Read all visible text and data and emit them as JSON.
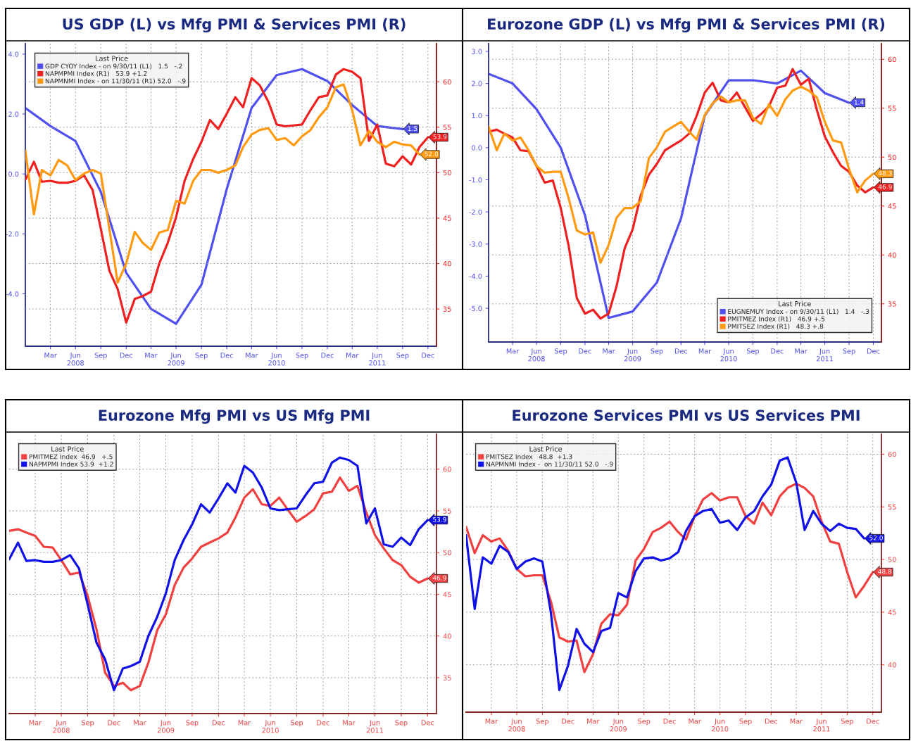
{
  "chart_data": [
    {
      "type": "line",
      "title": "US GDP (L) vs Mfg PMI & Services PMI (R)",
      "legend_title": "Last Price",
      "legend": "top left",
      "grid": true,
      "marker": "none",
      "line_style": "solid",
      "x": [
        "2007-12-31",
        "2008-01-31",
        "2008-02-29",
        "2008-03-31",
        "2008-04-30",
        "2008-05-31",
        "2008-06-30",
        "2008-07-31",
        "2008-08-31",
        "2008-09-30",
        "2008-10-31",
        "2008-11-30",
        "2008-12-31",
        "2009-01-31",
        "2009-02-28",
        "2009-03-31",
        "2009-04-30",
        "2009-05-31",
        "2009-06-30",
        "2009-07-31",
        "2009-08-31",
        "2009-09-30",
        "2009-10-31",
        "2009-11-30",
        "2009-12-31",
        "2010-01-31",
        "2010-02-28",
        "2010-03-31",
        "2010-04-30",
        "2010-05-31",
        "2010-06-30",
        "2010-07-31",
        "2010-08-31",
        "2010-09-30",
        "2010-10-31",
        "2010-11-30",
        "2010-12-31",
        "2011-01-31",
        "2011-02-28",
        "2011-03-31",
        "2011-04-30",
        "2011-05-31",
        "2011-06-30",
        "2011-07-31",
        "2011-08-31",
        "2011-09-30",
        "2011-10-31",
        "2011-11-30",
        "2011-12-31"
      ],
      "xlim": [
        "2007-12-31",
        "2012-01-31"
      ],
      "xticks": [
        {
          "value": "2008-03-31",
          "label": "Mar"
        },
        {
          "value": "2008-06-30",
          "label": "Jun\n2008"
        },
        {
          "value": "2008-09-30",
          "label": "Sep"
        },
        {
          "value": "2008-12-31",
          "label": "Dec"
        },
        {
          "value": "2009-03-31",
          "label": "Mar"
        },
        {
          "value": "2009-06-30",
          "label": "Jun\n2009"
        },
        {
          "value": "2009-09-30",
          "label": "Sep"
        },
        {
          "value": "2009-12-31",
          "label": "Dec"
        },
        {
          "value": "2010-03-31",
          "label": "Mar"
        },
        {
          "value": "2010-06-30",
          "label": "Jun\n2010"
        },
        {
          "value": "2010-09-30",
          "label": "Sep"
        },
        {
          "value": "2010-12-31",
          "label": "Dec"
        },
        {
          "value": "2011-03-31",
          "label": "Mar"
        },
        {
          "value": "2011-06-30",
          "label": "Jun\n2011"
        },
        {
          "value": "2011-09-30",
          "label": "Sep"
        },
        {
          "value": "2011-12-31",
          "label": "Dec"
        }
      ],
      "ylim": [
        -5.75,
        4.35
      ],
      "yticks": [
        {
          "value": -4,
          "label": "-4.0"
        },
        {
          "value": -2,
          "label": "-2.0"
        },
        {
          "value": 0,
          "label": "0.0"
        },
        {
          "value": 2,
          "label": "2.0"
        },
        {
          "value": 4,
          "label": "4.0"
        }
      ],
      "y2lim": [
        30.9,
        64.2
      ],
      "y2ticks": [
        35,
        40,
        45,
        50,
        55,
        60
      ],
      "series": [
        {
          "name": "GDP CYOY Index - on 9/30/11 (L1)   1.5   -.2",
          "color": "#5050f0",
          "axis": "y",
          "x": [
            "2007-12-31",
            "2008-03-31",
            "2008-06-30",
            "2008-09-30",
            "2008-12-31",
            "2009-03-31",
            "2009-06-30",
            "2009-09-30",
            "2009-12-31",
            "2010-03-31",
            "2010-06-30",
            "2010-09-30",
            "2010-12-31",
            "2011-03-31",
            "2011-06-30",
            "2011-09-30"
          ],
          "values": [
            2.2,
            1.6,
            1.1,
            -0.6,
            -3.3,
            -4.5,
            -5.0,
            -3.7,
            -0.5,
            2.2,
            3.3,
            3.5,
            3.1,
            2.3,
            1.6,
            1.5
          ],
          "value_labels": [
            null,
            null,
            null,
            null,
            null,
            null,
            null,
            null,
            null,
            null,
            null,
            null,
            null,
            null,
            null,
            "1.5"
          ]
        },
        {
          "name": "NAPMPMI Index (R1)   53.9 +1.2",
          "color": "#f02020",
          "axis": "y2",
          "values": [
            49.2,
            51.2,
            49.0,
            49.1,
            48.9,
            48.9,
            49.1,
            49.7,
            48.1,
            43.8,
            39.2,
            37.2,
            33.5,
            36.1,
            36.4,
            36.9,
            40.0,
            42.3,
            45.1,
            49.1,
            51.5,
            53.4,
            55.8,
            54.8,
            56.5,
            58.3,
            57.2,
            60.4,
            59.6,
            57.8,
            55.3,
            55.1,
            55.2,
            55.3,
            56.9,
            58.3,
            58.5,
            60.8,
            61.4,
            61.1,
            60.4,
            53.5,
            55.3,
            51.0,
            50.7,
            51.8,
            50.9,
            52.8,
            53.9
          ],
          "value_labels": [
            null,
            null,
            null,
            null,
            null,
            null,
            null,
            null,
            null,
            null,
            null,
            null,
            null,
            null,
            null,
            null,
            null,
            null,
            null,
            null,
            null,
            null,
            null,
            null,
            null,
            null,
            null,
            null,
            null,
            null,
            null,
            null,
            null,
            null,
            null,
            null,
            null,
            null,
            null,
            null,
            null,
            null,
            null,
            null,
            null,
            null,
            null,
            null,
            "53.9"
          ]
        },
        {
          "name": "NAPMNMI Index - on 11/30/11 (R1) 52.0   -.9",
          "color": "#ff9a10",
          "axis": "y2",
          "values": [
            52.4,
            45.4,
            50.3,
            49.7,
            51.4,
            50.8,
            49.2,
            49.9,
            50.3,
            49.9,
            43.8,
            37.9,
            40.0,
            43.5,
            42.3,
            41.5,
            43.4,
            43.7,
            46.9,
            46.6,
            49.1,
            50.3,
            50.3,
            50.0,
            50.3,
            50.8,
            52.8,
            54.2,
            54.7,
            54.9,
            53.6,
            53.8,
            53.0,
            54.0,
            54.7,
            56.1,
            57.2,
            59.4,
            59.7,
            56.9,
            53.0,
            54.6,
            53.4,
            52.8,
            53.4,
            53.1,
            53.0,
            52.0,
            null
          ],
          "value_labels": [
            null,
            null,
            null,
            null,
            null,
            null,
            null,
            null,
            null,
            null,
            null,
            null,
            null,
            null,
            null,
            null,
            null,
            null,
            null,
            null,
            null,
            null,
            null,
            null,
            null,
            null,
            null,
            null,
            null,
            null,
            null,
            null,
            null,
            null,
            null,
            null,
            null,
            null,
            null,
            null,
            null,
            null,
            null,
            null,
            null,
            null,
            null,
            "52.0",
            null
          ]
        }
      ]
    },
    {
      "type": "line",
      "title": "Eurozone GDP (L) vs Mfg PMI & Services PMI (R)",
      "legend_title": "Last Price",
      "legend": "bottom right",
      "grid": true,
      "marker": "none",
      "line_style": "solid",
      "x": [
        "2007-12-31",
        "2008-01-31",
        "2008-02-29",
        "2008-03-31",
        "2008-04-30",
        "2008-05-31",
        "2008-06-30",
        "2008-07-31",
        "2008-08-31",
        "2008-09-30",
        "2008-10-31",
        "2008-11-30",
        "2008-12-31",
        "2009-01-31",
        "2009-02-28",
        "2009-03-31",
        "2009-04-30",
        "2009-05-31",
        "2009-06-30",
        "2009-07-31",
        "2009-08-31",
        "2009-09-30",
        "2009-10-31",
        "2009-11-30",
        "2009-12-31",
        "2010-01-31",
        "2010-02-28",
        "2010-03-31",
        "2010-04-30",
        "2010-05-31",
        "2010-06-30",
        "2010-07-31",
        "2010-08-31",
        "2010-09-30",
        "2010-10-31",
        "2010-11-30",
        "2010-12-31",
        "2011-01-31",
        "2011-02-28",
        "2011-03-31",
        "2011-04-30",
        "2011-05-31",
        "2011-06-30",
        "2011-07-31",
        "2011-08-31",
        "2011-09-30",
        "2011-10-31",
        "2011-11-30",
        "2011-12-31"
      ],
      "xlim": [
        "2007-12-31",
        "2012-01-31"
      ],
      "xticks": [
        {
          "value": "2008-03-31",
          "label": "Mar"
        },
        {
          "value": "2008-06-30",
          "label": "Jun\n2008"
        },
        {
          "value": "2008-09-30",
          "label": "Sep"
        },
        {
          "value": "2008-12-31",
          "label": "Dec"
        },
        {
          "value": "2009-03-31",
          "label": "Mar"
        },
        {
          "value": "2009-06-30",
          "label": "Jun\n2009"
        },
        {
          "value": "2009-09-30",
          "label": "Sep"
        },
        {
          "value": "2009-12-31",
          "label": "Dec"
        },
        {
          "value": "2010-03-31",
          "label": "Mar"
        },
        {
          "value": "2010-06-30",
          "label": "Jun\n2010"
        },
        {
          "value": "2010-09-30",
          "label": "Sep"
        },
        {
          "value": "2010-12-31",
          "label": "Dec"
        },
        {
          "value": "2011-03-31",
          "label": "Mar"
        },
        {
          "value": "2011-06-30",
          "label": "Jun\n2011"
        },
        {
          "value": "2011-09-30",
          "label": "Sep"
        },
        {
          "value": "2011-12-31",
          "label": "Dec"
        }
      ],
      "ylim": [
        -6.05,
        3.24
      ],
      "yticks": [
        {
          "value": -5,
          "label": "-5.0"
        },
        {
          "value": -4,
          "label": "-4.0"
        },
        {
          "value": -3,
          "label": "-3.0"
        },
        {
          "value": -2,
          "label": "-2.0"
        },
        {
          "value": -1,
          "label": "-1.0"
        },
        {
          "value": 0,
          "label": "0.0"
        },
        {
          "value": 1,
          "label": "1.0"
        },
        {
          "value": 2,
          "label": "2.0"
        },
        {
          "value": 3,
          "label": "3.0"
        }
      ],
      "y2lim": [
        31.1,
        61.6
      ],
      "y2ticks": [
        35,
        40,
        45,
        50,
        55,
        60
      ],
      "series": [
        {
          "name": "EUGNEMUY Index - on 9/30/11 (L1)   1.4   -.3",
          "color": "#5050f0",
          "axis": "y",
          "x": [
            "2007-12-31",
            "2008-03-31",
            "2008-06-30",
            "2008-09-30",
            "2008-12-31",
            "2009-03-31",
            "2009-06-30",
            "2009-09-30",
            "2009-12-31",
            "2010-03-31",
            "2010-06-30",
            "2010-09-30",
            "2010-12-31",
            "2011-03-31",
            "2011-06-30",
            "2011-09-30"
          ],
          "values": [
            2.3,
            2.0,
            1.2,
            0.0,
            -2.1,
            -5.3,
            -5.1,
            -4.2,
            -2.2,
            1.0,
            2.1,
            2.1,
            2.0,
            2.4,
            1.7,
            1.4
          ],
          "value_labels": [
            null,
            null,
            null,
            null,
            null,
            null,
            null,
            null,
            null,
            null,
            null,
            null,
            null,
            null,
            null,
            "1.4"
          ]
        },
        {
          "name": "PMITMEZ Index (R1)   46.9 +.5",
          "color": "#f02020",
          "axis": "y2",
          "values": [
            52.6,
            52.8,
            52.4,
            52.0,
            50.7,
            50.6,
            49.1,
            47.4,
            47.6,
            44.8,
            40.8,
            35.6,
            34.0,
            34.4,
            33.5,
            34.0,
            36.8,
            40.7,
            42.6,
            46.1,
            48.2,
            49.3,
            50.7,
            51.2,
            51.7,
            52.4,
            54.2,
            56.6,
            57.6,
            55.8,
            55.6,
            56.6,
            55.1,
            53.7,
            54.4,
            55.2,
            57.1,
            57.3,
            59.0,
            57.4,
            58.0,
            54.8,
            52.1,
            50.5,
            49.1,
            48.5,
            47.1,
            46.4,
            46.9
          ],
          "value_labels": [
            null,
            null,
            null,
            null,
            null,
            null,
            null,
            null,
            null,
            null,
            null,
            null,
            null,
            null,
            null,
            null,
            null,
            null,
            null,
            null,
            null,
            null,
            null,
            null,
            null,
            null,
            null,
            null,
            null,
            null,
            null,
            null,
            null,
            null,
            null,
            null,
            null,
            null,
            null,
            null,
            null,
            null,
            null,
            null,
            null,
            null,
            null,
            null,
            "46.9"
          ]
        },
        {
          "name": "PMITSEZ Index (R1)   48.3 +.8",
          "color": "#ff9a10",
          "axis": "y2",
          "values": [
            53.1,
            50.7,
            52.4,
            51.7,
            52.0,
            50.7,
            49.1,
            48.4,
            48.5,
            48.5,
            45.7,
            42.5,
            42.1,
            42.3,
            39.2,
            41.0,
            43.8,
            44.8,
            44.8,
            45.5,
            49.9,
            51.0,
            52.6,
            53.1,
            53.6,
            52.6,
            51.8,
            54.3,
            55.5,
            56.2,
            55.6,
            55.8,
            55.8,
            54.0,
            53.4,
            55.4,
            54.2,
            55.9,
            56.8,
            57.2,
            56.8,
            56.1,
            53.6,
            51.7,
            51.5,
            48.8,
            46.4,
            47.6,
            48.3
          ],
          "value_labels": [
            null,
            null,
            null,
            null,
            null,
            null,
            null,
            null,
            null,
            null,
            null,
            null,
            null,
            null,
            null,
            null,
            null,
            null,
            null,
            null,
            null,
            null,
            null,
            null,
            null,
            null,
            null,
            null,
            null,
            null,
            null,
            null,
            null,
            null,
            null,
            null,
            null,
            null,
            null,
            null,
            null,
            null,
            null,
            null,
            null,
            null,
            null,
            null,
            "48.3"
          ]
        }
      ]
    },
    {
      "type": "line",
      "title": "Eurozone Mfg PMI vs US Mfg PMI",
      "legend_title": "Last Price",
      "legend": "top left",
      "grid": true,
      "marker": "none",
      "line_style": "solid",
      "x": [
        "2007-12-31",
        "2008-01-31",
        "2008-02-29",
        "2008-03-31",
        "2008-04-30",
        "2008-05-31",
        "2008-06-30",
        "2008-07-31",
        "2008-08-31",
        "2008-09-30",
        "2008-10-31",
        "2008-11-30",
        "2008-12-31",
        "2009-01-31",
        "2009-02-28",
        "2009-03-31",
        "2009-04-30",
        "2009-05-31",
        "2009-06-30",
        "2009-07-31",
        "2009-08-31",
        "2009-09-30",
        "2009-10-31",
        "2009-11-30",
        "2009-12-31",
        "2010-01-31",
        "2010-02-28",
        "2010-03-31",
        "2010-04-30",
        "2010-05-31",
        "2010-06-30",
        "2010-07-31",
        "2010-08-31",
        "2010-09-30",
        "2010-10-31",
        "2010-11-30",
        "2010-12-31",
        "2011-01-31",
        "2011-02-28",
        "2011-03-31",
        "2011-04-30",
        "2011-05-31",
        "2011-06-30",
        "2011-07-31",
        "2011-08-31",
        "2011-09-30",
        "2011-10-31",
        "2011-11-30",
        "2011-12-31"
      ],
      "xlim": [
        "2007-12-31",
        "2012-01-31"
      ],
      "xticks": [
        {
          "value": "2008-03-31",
          "label": "Mar"
        },
        {
          "value": "2008-06-30",
          "label": "Jun\n2008"
        },
        {
          "value": "2008-09-30",
          "label": "Sep"
        },
        {
          "value": "2008-12-31",
          "label": "Dec"
        },
        {
          "value": "2009-03-31",
          "label": "Mar"
        },
        {
          "value": "2009-06-30",
          "label": "Jun\n2009"
        },
        {
          "value": "2009-09-30",
          "label": "Sep"
        },
        {
          "value": "2009-12-31",
          "label": "Dec"
        },
        {
          "value": "2010-03-31",
          "label": "Mar"
        },
        {
          "value": "2010-06-30",
          "label": "Jun\n2010"
        },
        {
          "value": "2010-09-30",
          "label": "Sep"
        },
        {
          "value": "2010-12-31",
          "label": "Dec"
        },
        {
          "value": "2011-03-31",
          "label": "Mar"
        },
        {
          "value": "2011-06-30",
          "label": "Jun\n2011"
        },
        {
          "value": "2011-09-30",
          "label": "Sep"
        },
        {
          "value": "2011-12-31",
          "label": "Dec"
        }
      ],
      "y2lim": [
        30.7,
        64.2
      ],
      "y2ticks": [
        35,
        40,
        45,
        50,
        55,
        60
      ],
      "series": [
        {
          "name": "PMITMEZ Index  46.9   +.5",
          "color": "#f04040",
          "axis": "y2",
          "values": [
            52.6,
            52.8,
            52.4,
            52.0,
            50.7,
            50.6,
            49.1,
            47.4,
            47.6,
            44.8,
            40.8,
            35.6,
            34.0,
            34.4,
            33.5,
            34.0,
            36.8,
            40.7,
            42.6,
            46.1,
            48.2,
            49.3,
            50.7,
            51.2,
            51.7,
            52.4,
            54.2,
            56.6,
            57.6,
            55.8,
            55.6,
            56.6,
            55.1,
            53.7,
            54.4,
            55.2,
            57.1,
            57.3,
            59.0,
            57.4,
            58.0,
            54.8,
            52.1,
            50.5,
            49.1,
            48.5,
            47.1,
            46.4,
            46.9
          ],
          "value_labels": [
            null,
            null,
            null,
            null,
            null,
            null,
            null,
            null,
            null,
            null,
            null,
            null,
            null,
            null,
            null,
            null,
            null,
            null,
            null,
            null,
            null,
            null,
            null,
            null,
            null,
            null,
            null,
            null,
            null,
            null,
            null,
            null,
            null,
            null,
            null,
            null,
            null,
            null,
            null,
            null,
            null,
            null,
            null,
            null,
            null,
            null,
            null,
            null,
            "46.9"
          ]
        },
        {
          "name": "NAPMPMI Index 53.9  +1.2",
          "color": "#1010e8",
          "axis": "y2",
          "values": [
            49.2,
            51.2,
            49.0,
            49.1,
            48.9,
            48.9,
            49.1,
            49.7,
            48.1,
            43.8,
            39.2,
            37.2,
            33.5,
            36.1,
            36.4,
            36.9,
            40.0,
            42.3,
            45.1,
            49.1,
            51.5,
            53.4,
            55.8,
            54.8,
            56.5,
            58.3,
            57.2,
            60.4,
            59.6,
            57.8,
            55.3,
            55.1,
            55.2,
            55.3,
            56.9,
            58.3,
            58.5,
            60.8,
            61.4,
            61.1,
            60.4,
            53.5,
            55.3,
            51.0,
            50.7,
            51.8,
            50.9,
            52.8,
            53.9
          ],
          "value_labels": [
            null,
            null,
            null,
            null,
            null,
            null,
            null,
            null,
            null,
            null,
            null,
            null,
            null,
            null,
            null,
            null,
            null,
            null,
            null,
            null,
            null,
            null,
            null,
            null,
            null,
            null,
            null,
            null,
            null,
            null,
            null,
            null,
            null,
            null,
            null,
            null,
            null,
            null,
            null,
            null,
            null,
            null,
            null,
            null,
            null,
            null,
            null,
            null,
            "53.9"
          ]
        }
      ]
    },
    {
      "type": "line",
      "title": "Eurozone Services PMI vs US Services PMI",
      "legend_title": "Last Price",
      "legend": "top left",
      "grid": true,
      "marker": "none",
      "line_style": "solid",
      "x": [
        "2007-12-31",
        "2008-01-31",
        "2008-02-29",
        "2008-03-31",
        "2008-04-30",
        "2008-05-31",
        "2008-06-30",
        "2008-07-31",
        "2008-08-31",
        "2008-09-30",
        "2008-10-31",
        "2008-11-30",
        "2008-12-31",
        "2009-01-31",
        "2009-02-28",
        "2009-03-31",
        "2009-04-30",
        "2009-05-31",
        "2009-06-30",
        "2009-07-31",
        "2009-08-31",
        "2009-09-30",
        "2009-10-31",
        "2009-11-30",
        "2009-12-31",
        "2010-01-31",
        "2010-02-28",
        "2010-03-31",
        "2010-04-30",
        "2010-05-31",
        "2010-06-30",
        "2010-07-31",
        "2010-08-31",
        "2010-09-30",
        "2010-10-31",
        "2010-11-30",
        "2010-12-31",
        "2011-01-31",
        "2011-02-28",
        "2011-03-31",
        "2011-04-30",
        "2011-05-31",
        "2011-06-30",
        "2011-07-31",
        "2011-08-31",
        "2011-09-30",
        "2011-10-31",
        "2011-11-30",
        "2011-12-31"
      ],
      "xlim": [
        "2007-12-31",
        "2012-01-31"
      ],
      "xticks": [
        {
          "value": "2008-03-31",
          "label": "Mar"
        },
        {
          "value": "2008-06-30",
          "label": "Jun\n2008"
        },
        {
          "value": "2008-09-30",
          "label": "Sep"
        },
        {
          "value": "2008-12-31",
          "label": "Dec"
        },
        {
          "value": "2009-03-31",
          "label": "Mar"
        },
        {
          "value": "2009-06-30",
          "label": "Jun\n2009"
        },
        {
          "value": "2009-09-30",
          "label": "Sep"
        },
        {
          "value": "2009-12-31",
          "label": "Dec"
        },
        {
          "value": "2010-03-31",
          "label": "Mar"
        },
        {
          "value": "2010-06-30",
          "label": "Jun\n2010"
        },
        {
          "value": "2010-09-30",
          "label": "Sep"
        },
        {
          "value": "2010-12-31",
          "label": "Dec"
        },
        {
          "value": "2011-03-31",
          "label": "Mar"
        },
        {
          "value": "2011-06-30",
          "label": "Jun\n2011"
        },
        {
          "value": "2011-09-30",
          "label": "Sep"
        },
        {
          "value": "2011-12-31",
          "label": "Dec"
        }
      ],
      "y2lim": [
        35.5,
        61.9
      ],
      "y2ticks": [
        40,
        45,
        50,
        55,
        60
      ],
      "series": [
        {
          "name": "PMITSEZ Index   48.8  +1.3",
          "color": "#f04040",
          "axis": "y2",
          "values": [
            53.1,
            50.6,
            52.3,
            51.7,
            52.0,
            50.8,
            49.1,
            48.4,
            48.5,
            48.5,
            46.0,
            42.6,
            42.2,
            42.3,
            39.3,
            41.0,
            43.9,
            44.8,
            44.7,
            45.7,
            49.9,
            51.0,
            52.6,
            53.0,
            53.6,
            52.6,
            51.9,
            54.1,
            55.7,
            56.3,
            55.6,
            55.9,
            55.9,
            54.1,
            53.4,
            55.4,
            54.2,
            56.0,
            56.8,
            57.2,
            56.8,
            56.0,
            53.6,
            51.7,
            51.5,
            48.8,
            46.4,
            47.5,
            48.8
          ],
          "value_labels": [
            null,
            null,
            null,
            null,
            null,
            null,
            null,
            null,
            null,
            null,
            null,
            null,
            null,
            null,
            null,
            null,
            null,
            null,
            null,
            null,
            null,
            null,
            null,
            null,
            null,
            null,
            null,
            null,
            null,
            null,
            null,
            null,
            null,
            null,
            null,
            null,
            null,
            null,
            null,
            null,
            null,
            null,
            null,
            null,
            null,
            null,
            null,
            null,
            "48.8"
          ]
        },
        {
          "name": "NAPMNMI Index -  on 11/30/11 52.0   -.9",
          "color": "#1010e8",
          "axis": "y2",
          "values": [
            52.3,
            45.3,
            50.2,
            49.6,
            51.3,
            50.7,
            49.1,
            49.8,
            50.1,
            49.8,
            44.9,
            37.6,
            39.9,
            43.4,
            42.0,
            41.2,
            43.2,
            43.5,
            46.8,
            46.4,
            48.9,
            50.1,
            50.2,
            49.9,
            50.1,
            50.7,
            52.7,
            54.1,
            54.6,
            54.8,
            53.5,
            53.7,
            52.8,
            54.0,
            54.6,
            56.0,
            57.1,
            59.4,
            59.7,
            57.3,
            52.8,
            54.6,
            53.4,
            52.7,
            53.4,
            53.0,
            52.9,
            52.0,
            null
          ],
          "value_labels": [
            null,
            null,
            null,
            null,
            null,
            null,
            null,
            null,
            null,
            null,
            null,
            null,
            null,
            null,
            null,
            null,
            null,
            null,
            null,
            null,
            null,
            null,
            null,
            null,
            null,
            null,
            null,
            null,
            null,
            null,
            null,
            null,
            null,
            null,
            null,
            null,
            null,
            null,
            null,
            null,
            null,
            null,
            null,
            null,
            null,
            null,
            null,
            "52.0",
            null
          ]
        }
      ]
    }
  ]
}
